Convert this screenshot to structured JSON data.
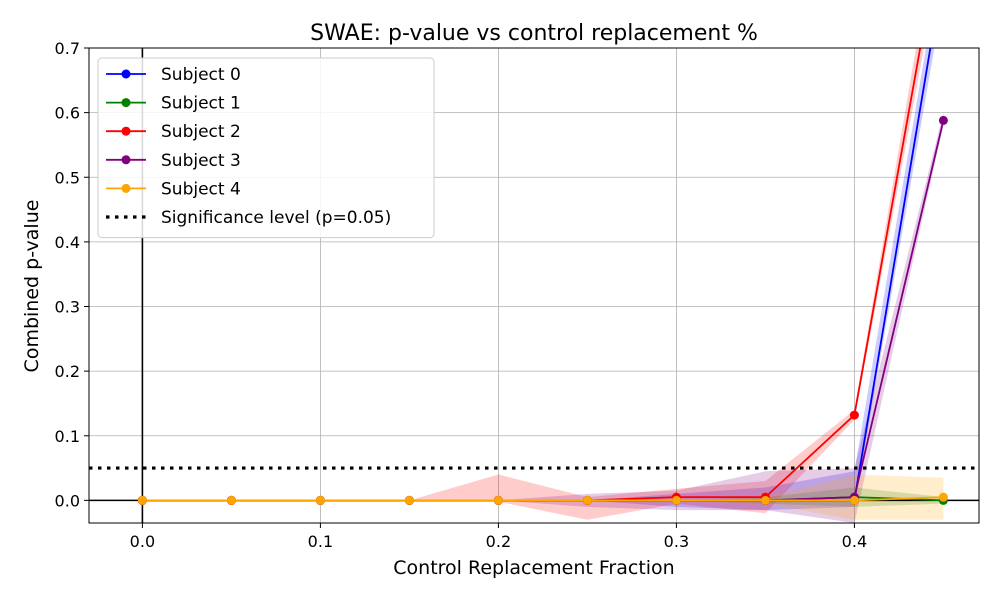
{
  "chart_data": {
    "type": "line",
    "title": "SWAE: p-value vs control replacement %",
    "xlabel": "Control Replacement Fraction",
    "ylabel": "Combined p-value",
    "xlim": [
      -0.03,
      0.47
    ],
    "ylim": [
      -0.035,
      0.7
    ],
    "xticks": [
      0.0,
      0.1,
      0.2,
      0.3,
      0.4
    ],
    "xtick_labels": [
      "0.0",
      "0.1",
      "0.2",
      "0.3",
      "0.4"
    ],
    "yticks": [
      0.0,
      0.1,
      0.2,
      0.3,
      0.4,
      0.5,
      0.6,
      0.7
    ],
    "ytick_labels": [
      "0.0",
      "0.1",
      "0.2",
      "0.3",
      "0.4",
      "0.5",
      "0.6",
      "0.7"
    ],
    "grid": true,
    "legend_position": "top-left",
    "x": [
      0.0,
      0.05,
      0.1,
      0.15,
      0.2,
      0.25,
      0.3,
      0.35,
      0.4,
      0.45
    ],
    "series": [
      {
        "name": "Subject 0",
        "color": "#0000ff",
        "values": [
          0.0,
          0.0,
          0.0,
          0.0,
          0.0,
          0.0,
          0.0,
          0.0,
          0.0,
          0.82
        ],
        "band_lower": [
          0.0,
          0.0,
          0.0,
          0.0,
          0.0,
          0.0,
          -0.01,
          -0.015,
          -0.01,
          0.78
        ],
        "band_upper": [
          0.0,
          0.0,
          0.0,
          0.0,
          0.0,
          0.0,
          0.01,
          0.02,
          0.045,
          0.86
        ]
      },
      {
        "name": "Subject 1",
        "color": "#008000",
        "values": [
          0.0,
          0.0,
          0.0,
          0.0,
          0.0,
          0.0,
          0.0,
          0.0,
          0.005,
          0.0
        ],
        "band_lower": [
          0.0,
          0.0,
          0.0,
          0.0,
          0.0,
          0.0,
          0.0,
          -0.005,
          -0.01,
          -0.005
        ],
        "band_upper": [
          0.0,
          0.0,
          0.0,
          0.0,
          0.0,
          0.0,
          0.0,
          0.005,
          0.02,
          0.005
        ]
      },
      {
        "name": "Subject 2",
        "color": "#ff0000",
        "values": [
          0.0,
          0.0,
          0.0,
          0.0,
          0.0,
          0.0,
          0.005,
          0.005,
          0.132,
          0.9
        ],
        "band_lower": [
          0.0,
          0.0,
          0.0,
          0.0,
          -0.002,
          -0.03,
          -0.005,
          -0.02,
          0.125,
          0.86
        ],
        "band_upper": [
          0.0,
          0.0,
          0.0,
          0.0,
          0.04,
          0.005,
          0.018,
          0.03,
          0.14,
          0.95
        ]
      },
      {
        "name": "Subject 3",
        "color": "#800080",
        "values": [
          0.0,
          0.0,
          0.0,
          0.0,
          0.0,
          0.0,
          0.0,
          0.0,
          0.005,
          0.588
        ],
        "band_lower": [
          0.0,
          0.0,
          0.0,
          0.0,
          0.0,
          -0.01,
          -0.015,
          -0.015,
          -0.035,
          0.58
        ],
        "band_upper": [
          0.0,
          0.0,
          0.0,
          0.0,
          0.0,
          0.01,
          0.015,
          0.045,
          0.05,
          0.6
        ]
      },
      {
        "name": "Subject 4",
        "color": "#ffa500",
        "values": [
          0.0,
          0.0,
          0.0,
          0.0,
          0.0,
          0.0,
          0.0,
          0.0,
          0.0,
          0.005
        ],
        "band_lower": [
          0.0,
          0.0,
          0.0,
          0.0,
          0.0,
          0.0,
          0.0,
          -0.005,
          -0.03,
          -0.03
        ],
        "band_upper": [
          0.0,
          0.0,
          0.0,
          0.0,
          0.0,
          0.0,
          0.0,
          0.005,
          0.04,
          0.035
        ]
      }
    ],
    "reference_lines": [
      {
        "name": "Significance level (p=0.05)",
        "axis": "y",
        "value": 0.05,
        "color": "#000000",
        "style": "dotted"
      }
    ],
    "axis_lines": {
      "x_zero": true,
      "y_zero": true
    }
  }
}
